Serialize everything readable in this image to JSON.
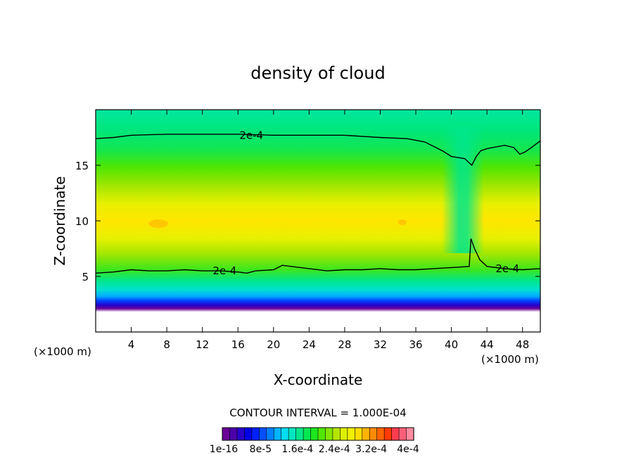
{
  "chart_data": {
    "type": "heatmap",
    "title": "density of cloud",
    "xlabel": "X-coordinate",
    "ylabel": "Z-coordinate",
    "x_unit_label_left": "(×1000 m)",
    "x_unit_label_right": "(×1000 m)",
    "xlim": [
      0,
      50
    ],
    "ylim": [
      0,
      20
    ],
    "x_ticks": [
      4,
      8,
      12,
      16,
      20,
      24,
      28,
      32,
      36,
      40,
      44,
      48
    ],
    "x_tick_labels": [
      "4",
      "8",
      "12",
      "16",
      "20",
      "24",
      "28",
      "32",
      "36",
      "40",
      "44",
      "48"
    ],
    "y_ticks": [
      5,
      10,
      15
    ],
    "y_tick_labels": [
      "5",
      "10",
      "15"
    ],
    "contour_interval_text": "CONTOUR INTERVAL = 1.000E-04",
    "contour_labels": [
      {
        "text": "2e-4",
        "x": 17.5,
        "y": 17.7
      },
      {
        "text": "2e-4",
        "x": 14.5,
        "y": 5.5
      },
      {
        "text": "2e-4",
        "x": 46.3,
        "y": 5.7
      }
    ],
    "contour_lines": [
      {
        "level": "2e-4",
        "points": [
          [
            0,
            17.4
          ],
          [
            2,
            17.5
          ],
          [
            4,
            17.7
          ],
          [
            8,
            17.8
          ],
          [
            12,
            17.8
          ],
          [
            16,
            17.8
          ],
          [
            20,
            17.7
          ],
          [
            24,
            17.7
          ],
          [
            28,
            17.7
          ],
          [
            32,
            17.5
          ],
          [
            35,
            17.4
          ],
          [
            37,
            17.1
          ],
          [
            39,
            16.3
          ],
          [
            40,
            15.8
          ],
          [
            41.5,
            15.6
          ],
          [
            42.3,
            15.0
          ],
          [
            42.8,
            15.8
          ],
          [
            43.3,
            16.3
          ],
          [
            44,
            16.5
          ],
          [
            46,
            16.8
          ],
          [
            47,
            16.6
          ],
          [
            47.7,
            16.0
          ],
          [
            48.3,
            16.2
          ],
          [
            49,
            16.6
          ],
          [
            50,
            17.2
          ]
        ]
      },
      {
        "level": "2e-4",
        "points": [
          [
            0,
            5.3
          ],
          [
            2,
            5.4
          ],
          [
            4,
            5.6
          ],
          [
            6,
            5.5
          ],
          [
            8,
            5.5
          ],
          [
            10,
            5.6
          ],
          [
            12,
            5.5
          ],
          [
            14,
            5.5
          ],
          [
            16,
            5.4
          ],
          [
            17,
            5.3
          ],
          [
            18,
            5.5
          ],
          [
            20,
            5.6
          ],
          [
            21,
            6.0
          ],
          [
            22,
            5.9
          ],
          [
            24,
            5.7
          ],
          [
            26,
            5.5
          ],
          [
            28,
            5.6
          ],
          [
            30,
            5.6
          ],
          [
            32,
            5.7
          ],
          [
            34,
            5.6
          ],
          [
            36,
            5.6
          ],
          [
            38,
            5.7
          ],
          [
            40,
            5.8
          ],
          [
            42,
            5.9
          ],
          [
            42.2,
            8.4
          ],
          [
            42.6,
            7.5
          ],
          [
            43.2,
            6.5
          ],
          [
            44,
            5.9
          ],
          [
            46,
            5.7
          ],
          [
            48,
            5.6
          ],
          [
            50,
            5.7
          ]
        ]
      }
    ],
    "colorbar": {
      "colors": [
        "#6a0096",
        "#4b00a8",
        "#2800c8",
        "#0000e6",
        "#0020ff",
        "#0050ff",
        "#0080ff",
        "#00b4ff",
        "#00dcf0",
        "#00e6c0",
        "#00e68c",
        "#00e650",
        "#1ee61e",
        "#50e600",
        "#82e600",
        "#b4e600",
        "#dcf000",
        "#f0f000",
        "#ffdc00",
        "#ffb400",
        "#ff8c00",
        "#ff6400",
        "#ff3c00",
        "#ff3c50",
        "#ff5f78",
        "#ff8ca0"
      ],
      "tick_labels": [
        "1e-16",
        "8e-5",
        "1.6e-4",
        "2.4e-4",
        "3.2e-4",
        "4e-4"
      ]
    }
  }
}
